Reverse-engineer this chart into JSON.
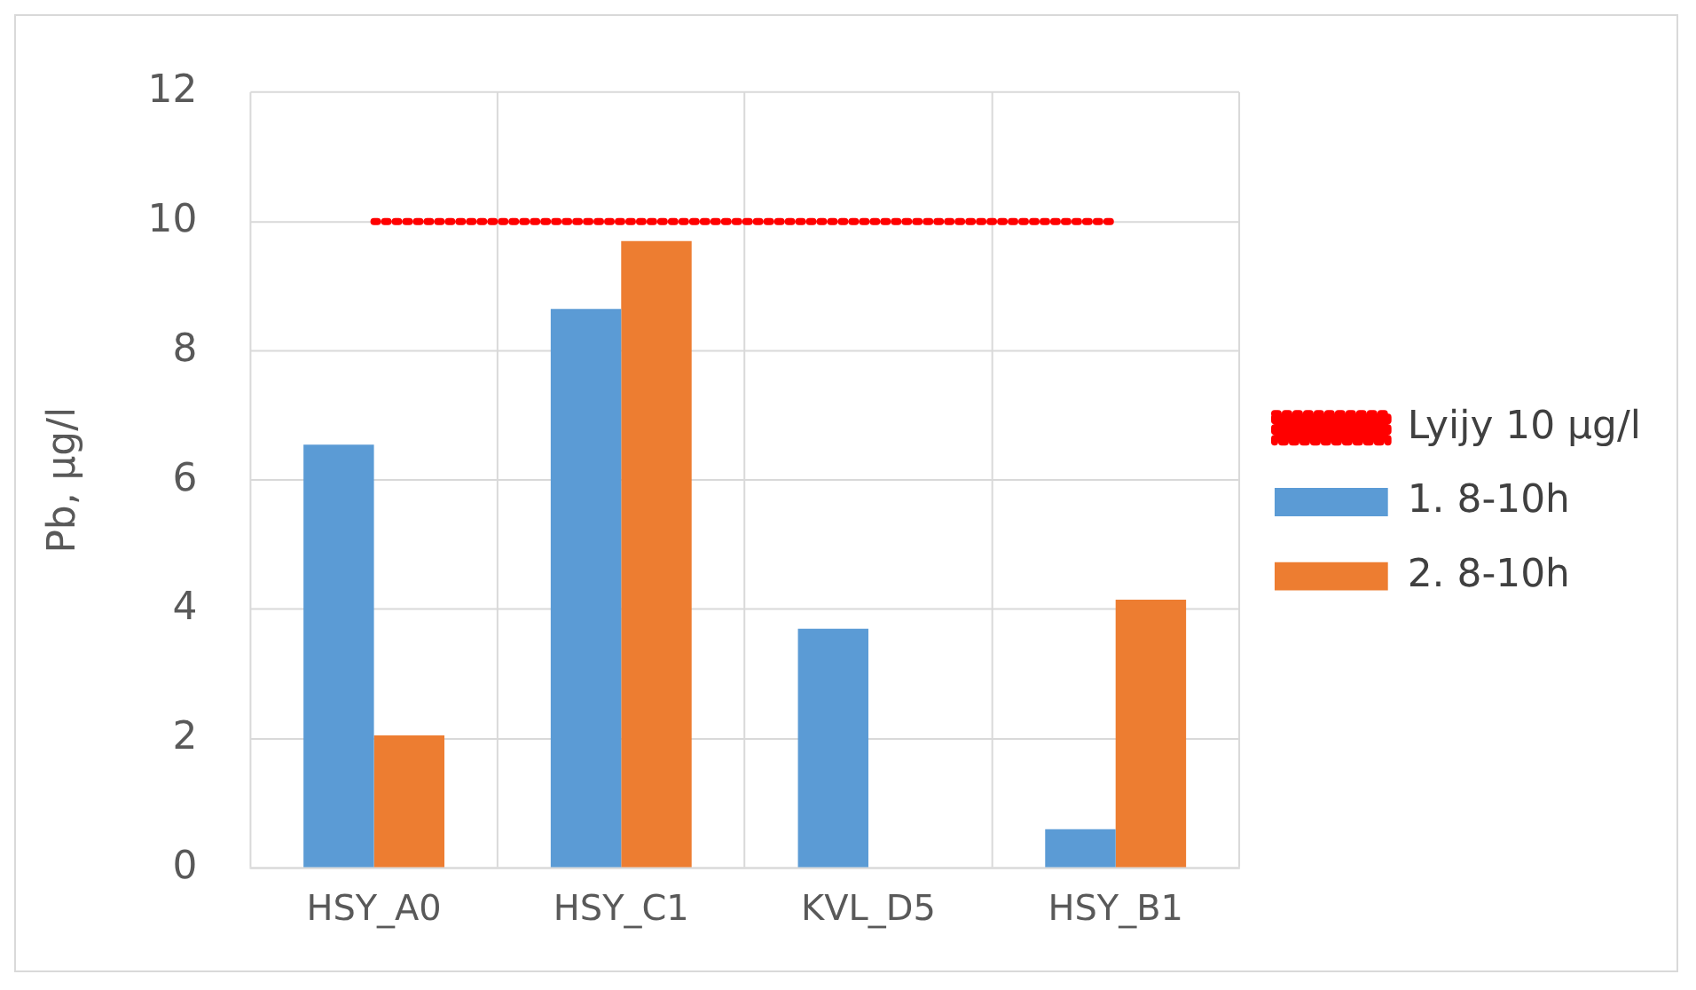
{
  "chart_data": {
    "type": "bar",
    "ylabel": "Pb, µg/l",
    "categories": [
      "HSY_A0",
      "HSY_C1",
      "KVL_D5",
      "HSY_B1"
    ],
    "series": [
      {
        "name": "1. 8-10h",
        "color": "#5b9bd5",
        "values": [
          6.55,
          8.65,
          3.7,
          0.6
        ]
      },
      {
        "name": "2. 8-10h",
        "color": "#ed7d31",
        "values": [
          2.05,
          9.7,
          null,
          4.15
        ]
      },
      {
        "name": "Lyijy 10 µg/l",
        "type": "line",
        "color": "#ff0000",
        "line_style": "dotted",
        "marker": "none",
        "values": [
          10,
          10,
          10,
          10
        ]
      }
    ],
    "ylim": [
      0,
      12
    ],
    "yticks": [
      0,
      2,
      4,
      6,
      8,
      10,
      12
    ],
    "grid": true,
    "legend": "right"
  }
}
